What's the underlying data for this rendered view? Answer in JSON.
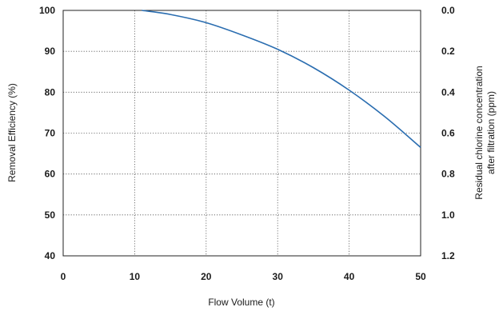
{
  "chart_data": {
    "type": "line",
    "xlabel": "Flow Volume (t)",
    "ylabel": "Removal Efficiency (%)",
    "y2label_lines": [
      "Residual chlorine concentration",
      "after filtration (ppm)"
    ],
    "xlim": [
      0,
      50
    ],
    "ylim": [
      40,
      100
    ],
    "y2lim": [
      0.0,
      1.2
    ],
    "x_ticks": [
      "0",
      "10",
      "20",
      "30",
      "40",
      "50"
    ],
    "y_ticks": [
      "40",
      "50",
      "60",
      "70",
      "80",
      "90",
      "100"
    ],
    "y2_ticks": [
      "0.0",
      "0.2",
      "0.4",
      "0.6",
      "0.8",
      "1.0",
      "1.2"
    ],
    "grid": true,
    "series": [
      {
        "color": "#2a6db0",
        "x": [
          11,
          15,
          20,
          25,
          30,
          35,
          40,
          45,
          50
        ],
        "y": [
          100,
          99,
          97,
          94,
          90.5,
          86,
          80.5,
          74,
          66.5
        ]
      }
    ]
  }
}
